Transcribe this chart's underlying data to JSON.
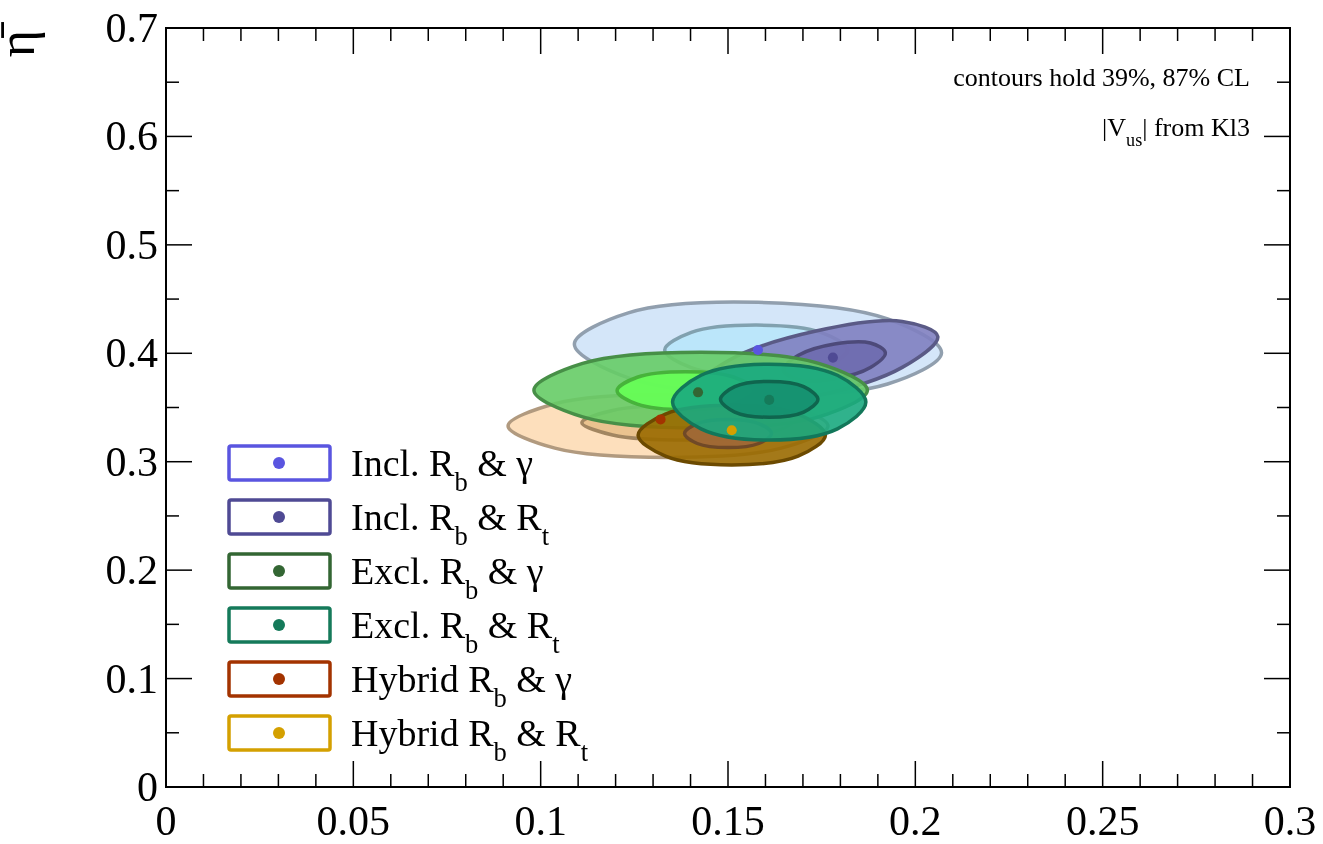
{
  "chart_data": {
    "type": "scatter",
    "ylabel": "η̄",
    "annotations": [
      "contours hold 39%, 87% CL",
      "|V$_{us}$| from Kl3"
    ],
    "xlim": [
      0,
      0.3
    ],
    "ylim": [
      0,
      0.7
    ],
    "xticks": [
      0,
      {
        "value": 0.01,
        "label": null
      },
      {
        "value": 0.02,
        "label": null
      },
      {
        "value": 0.03,
        "label": null
      },
      {
        "value": 0.04,
        "label": null
      },
      0.05,
      {
        "value": 0.06,
        "label": null
      },
      {
        "value": 0.07,
        "label": null
      },
      {
        "value": 0.08,
        "label": null
      },
      {
        "value": 0.09,
        "label": null
      },
      0.1,
      {
        "value": 0.11,
        "label": null
      },
      {
        "value": 0.12,
        "label": null
      },
      {
        "value": 0.13,
        "label": null
      },
      {
        "value": 0.14,
        "label": null
      },
      0.15,
      {
        "value": 0.16,
        "label": null
      },
      {
        "value": 0.17,
        "label": null
      },
      {
        "value": 0.18,
        "label": null
      },
      {
        "value": 0.19,
        "label": null
      },
      0.2,
      {
        "value": 0.21,
        "label": null
      },
      {
        "value": 0.22,
        "label": null
      },
      {
        "value": 0.23,
        "label": null
      },
      {
        "value": 0.24,
        "label": null
      },
      0.25,
      {
        "value": 0.26,
        "label": null
      },
      {
        "value": 0.27,
        "label": null
      },
      {
        "value": 0.28,
        "label": null
      },
      {
        "value": 0.29,
        "label": null
      },
      0.3
    ],
    "yticks": [
      0,
      {
        "value": 0.05,
        "label": null
      },
      0.1,
      {
        "value": 0.15,
        "label": null
      },
      0.2,
      {
        "value": 0.25,
        "label": null
      },
      0.3,
      {
        "value": 0.35,
        "label": null
      },
      0.4,
      {
        "value": 0.45,
        "label": null
      },
      0.5,
      {
        "value": 0.55,
        "label": null
      },
      0.6,
      {
        "value": 0.65,
        "label": null
      },
      0.7
    ],
    "legend": "bottom left",
    "marker": "circle",
    "series": [
      {
        "type": "area",
        "marker": "none",
        "color": "#fddcb5",
        "x": [
          0.1767,
          0.1642,
          0.134,
          0.1038,
          0.0913,
          0.1038,
          0.134,
          0.1642
        ],
        "values": [
          0.333,
          0.3535,
          0.362,
          0.3535,
          0.333,
          0.3125,
          0.304,
          0.3125
        ]
      },
      {
        "type": "area",
        "marker": "none",
        "color": "#e8c08a",
        "x": [
          0.167,
          0.1588,
          0.139,
          0.1192,
          0.111,
          0.1192,
          0.139,
          0.1588
        ],
        "values": [
          0.336,
          0.3473,
          0.352,
          0.3473,
          0.336,
          0.3247,
          0.32,
          0.3247
        ]
      },
      {
        "type": "area",
        "marker": "none",
        "color": "#cfe3f8",
        "x": [
          0.207,
          0.1926,
          0.158,
          0.1234,
          0.109,
          0.1234,
          0.158,
          0.1926
        ],
        "values": [
          0.4005,
          0.4317,
          0.447,
          0.4373,
          0.4085,
          0.3773,
          0.362,
          0.3717
        ]
      },
      {
        "type": "area",
        "marker": "none",
        "color": "#b8e6fa",
        "x": [
          0.1819,
          0.1748,
          0.1575,
          0.1402,
          0.1331,
          0.1402,
          0.1575,
          0.1748
        ],
        "values": [
          0.403,
          0.4193,
          0.426,
          0.4193,
          0.403,
          0.3867,
          0.38,
          0.3867
        ]
      },
      {
        "type": "area",
        "marker": "none",
        "color": "#8080c0",
        "x": [
          0.206,
          0.1965,
          0.1735,
          0.1505,
          0.141,
          0.1505,
          0.1735,
          0.1965
        ],
        "values": [
          0.4155,
          0.4294,
          0.4205,
          0.394,
          0.3655,
          0.3516,
          0.3605,
          0.387
        ]
      },
      {
        "type": "area",
        "marker": "none",
        "color": "#6e6aae",
        "x": [
          0.192,
          0.188,
          0.1784,
          0.1688,
          0.1648,
          0.1688,
          0.1784,
          0.188
        ],
        "values": [
          0.4005,
          0.4095,
          0.4085,
          0.3981,
          0.3845,
          0.3755,
          0.3765,
          0.3869
        ]
      },
      {
        "type": "area",
        "marker": "none",
        "color": "#66cc66",
        "x": [
          0.1872,
          0.1742,
          0.1427,
          0.1112,
          0.0982,
          0.1112,
          0.1427,
          0.1742
        ],
        "values": [
          0.366,
          0.3907,
          0.401,
          0.3907,
          0.366,
          0.3413,
          0.331,
          0.3413
        ]
      },
      {
        "type": "area",
        "marker": "none",
        "color": "#66ff55",
        "x": [
          0.157,
          0.1516,
          0.1387,
          0.1258,
          0.1204,
          0.1258,
          0.1387,
          0.1516
        ],
        "values": [
          0.3655,
          0.3779,
          0.383,
          0.3779,
          0.3655,
          0.3531,
          0.348,
          0.3531
        ]
      },
      {
        "type": "area",
        "marker": "none",
        "color": "#9a6a00",
        "x": [
          0.176,
          0.1687,
          0.151,
          0.1333,
          0.126,
          0.1333,
          0.151,
          0.1687
        ],
        "values": [
          0.3245,
          0.3439,
          0.352,
          0.3439,
          0.3245,
          0.3051,
          0.297,
          0.3051
        ]
      },
      {
        "type": "area",
        "marker": "none",
        "color": "#a06838",
        "x": [
          0.1616,
          0.1582,
          0.15,
          0.1418,
          0.1384,
          0.1418,
          0.15,
          0.1582
        ],
        "values": [
          0.326,
          0.3352,
          0.339,
          0.3352,
          0.326,
          0.3168,
          0.313,
          0.3168
        ]
      },
      {
        "type": "area",
        "marker": "none",
        "color": "#1aaa80",
        "x": [
          0.1868,
          0.1792,
          0.161,
          0.1428,
          0.1352,
          0.1428,
          0.161,
          0.1792
        ],
        "values": [
          0.355,
          0.3797,
          0.39,
          0.3797,
          0.355,
          0.3303,
          0.32,
          0.3303
        ]
      },
      {
        "type": "area",
        "marker": "none",
        "color": "#159070",
        "x": [
          0.174,
          0.1702,
          0.161,
          0.1518,
          0.148,
          0.1518,
          0.161,
          0.1702
        ],
        "values": [
          0.3575,
          0.3692,
          0.374,
          0.3692,
          0.3575,
          0.3458,
          0.341,
          0.3458
        ]
      },
      {
        "name": "Incl. R$_{b}$ &  γ",
        "color": "#5a55e0",
        "x": [
          0.158
        ],
        "values": [
          0.403
        ]
      },
      {
        "name": "Incl. R$_{b}$ & R$_{t}$",
        "color": "#4f4a94",
        "x": [
          0.178
        ],
        "values": [
          0.396
        ]
      },
      {
        "name": "Excl. R$_{b}$ &  γ",
        "color": "#336633",
        "x": [
          0.142
        ],
        "values": [
          0.364
        ]
      },
      {
        "name": "Excl. R$_{b}$ & R$_{t}$",
        "color": "#157a5a",
        "x": [
          0.161
        ],
        "values": [
          0.357
        ]
      },
      {
        "name": "Hybrid R$_{b}$ &  γ",
        "color": "#a33300",
        "x": [
          0.132
        ],
        "values": [
          0.339
        ]
      },
      {
        "name": "Hybrid R$_{b}$ & R$_{t}$",
        "color": "#d4a000",
        "x": [
          0.151
        ],
        "values": [
          0.329
        ]
      }
    ]
  }
}
